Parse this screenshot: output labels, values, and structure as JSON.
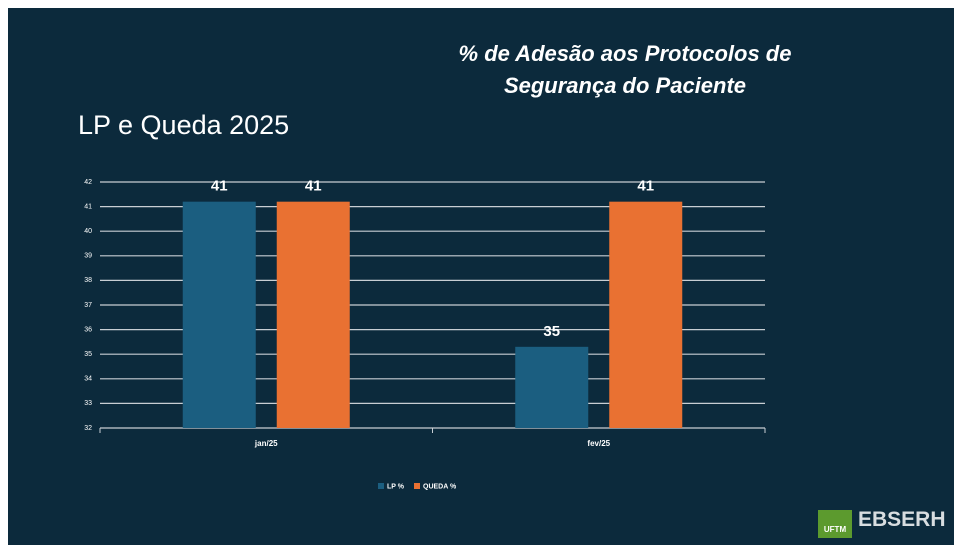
{
  "chart_data": {
    "type": "bar",
    "title": "% de Adesão aos Protocolos de Segurança do Paciente",
    "subtitle": "LP e Queda 2025",
    "categories": [
      "jan/25",
      "fev/25"
    ],
    "series": [
      {
        "name": "LP %",
        "color": "#1b5e80",
        "values": [
          41.2,
          35.3
        ],
        "value_labels": [
          "41",
          "35"
        ]
      },
      {
        "name": "QUEDA %",
        "color": "#e97132",
        "values": [
          41.2,
          41.2
        ],
        "value_labels": [
          "41",
          "41"
        ]
      }
    ],
    "ylim": [
      32,
      42
    ],
    "yticks": [
      32,
      33,
      34,
      35,
      36,
      37,
      38,
      39,
      40,
      41,
      42
    ],
    "grid": true,
    "legend": "bottom"
  },
  "logos": {
    "left": "UFTM",
    "right": "EBSERH"
  }
}
